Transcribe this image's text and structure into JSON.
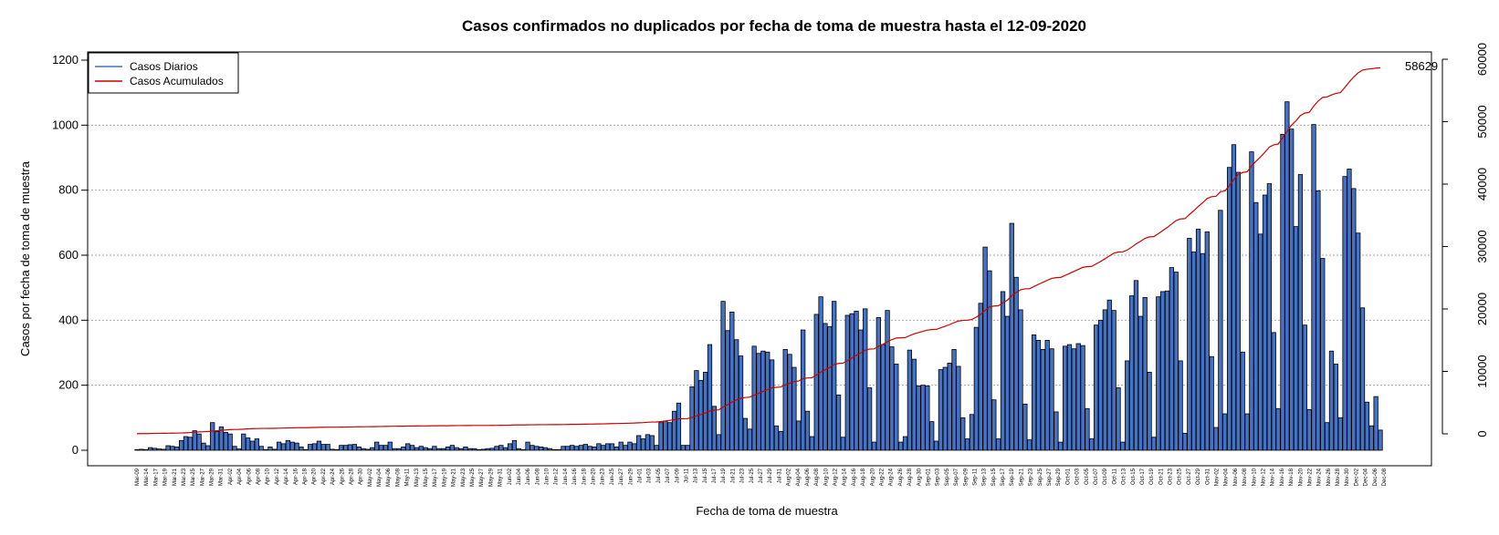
{
  "chart_data": {
    "type": "bar",
    "title": "Casos confirmados no duplicados por fecha de toma de muestra hasta el 12-09-2020",
    "xlabel": "Fecha de toma de muestra",
    "ylabel": "Casos por fecha de toma de muestra",
    "ylim": [
      0,
      1200
    ],
    "y_ticks": [
      "0",
      "200",
      "400",
      "600",
      "800",
      "1000",
      "1200"
    ],
    "y2lim": [
      -2000,
      62000
    ],
    "y2_ticks": [
      "0",
      "10000",
      "20000",
      "30000",
      "40000",
      "50000",
      "60000"
    ],
    "grid": "horizontal dotted",
    "legend_position": "top-left",
    "bar_color": "#4472C4",
    "line_color": "#CC0000",
    "series": [
      {
        "name": "Casos Diarios",
        "kind": "bar"
      },
      {
        "name": "Casos Acumulados",
        "kind": "line"
      }
    ],
    "final_label": "58629",
    "x_tick_labels": [
      "Mar-09",
      "Mar-14",
      "Mar-17",
      "Mar-19",
      "Mar-21",
      "Mar-23",
      "Mar-25",
      "Mar-27",
      "Mar-29",
      "Mar-31",
      "Apr-02",
      "Apr-04",
      "Apr-06",
      "Apr-08",
      "Apr-10",
      "Apr-12",
      "Apr-14",
      "Apr-16",
      "Apr-18",
      "Apr-20",
      "Apr-22",
      "Apr-24",
      "Apr-26",
      "Apr-28",
      "Apr-30",
      "May-02",
      "May-04",
      "May-06",
      "May-08",
      "May-11",
      "May-13",
      "May-15",
      "May-17",
      "May-19",
      "May-21",
      "May-23",
      "May-25",
      "May-27",
      "May-29",
      "May-31",
      "Jun-02",
      "Jun-04",
      "Jun-06",
      "Jun-08",
      "Jun-10",
      "Jun-12",
      "Jun-14",
      "Jun-16",
      "Jun-18",
      "Jun-20",
      "Jun-23",
      "Jun-25",
      "Jun-27",
      "Jun-29",
      "Jul-01",
      "Jul-03",
      "Jul-05",
      "Jul-07",
      "Jul-09",
      "Jul-11",
      "Jul-13",
      "Jul-15",
      "Jul-17",
      "Jul-19",
      "Jul-21",
      "Jul-23",
      "Jul-25",
      "Jul-27",
      "Jul-29",
      "Jul-31",
      "Aug-02",
      "Aug-04",
      "Aug-06",
      "Aug-08",
      "Aug-10",
      "Aug-12",
      "Aug-14",
      "Aug-16",
      "Aug-18",
      "Aug-20",
      "Aug-22",
      "Aug-24",
      "Aug-26",
      "Aug-28",
      "Aug-30",
      "Sep-01",
      "Sep-03",
      "Sep-05",
      "Sep-07",
      "Sep-09",
      "Sep-11",
      "Sep-13",
      "Sep-15",
      "Sep-17",
      "Sep-19",
      "Sep-21",
      "Sep-23",
      "Sep-25",
      "Sep-27",
      "Sep-29",
      "Oct-01",
      "Oct-03",
      "Oct-05",
      "Oct-07",
      "Oct-09",
      "Oct-11",
      "Oct-13",
      "Oct-15",
      "Oct-17",
      "Oct-19",
      "Oct-21",
      "Oct-23",
      "Oct-25",
      "Oct-27",
      "Oct-29",
      "Oct-31",
      "Nov-02",
      "Nov-04",
      "Nov-06",
      "Nov-08",
      "Nov-10",
      "Nov-12",
      "Nov-14",
      "Nov-16",
      "Nov-18",
      "Nov-20",
      "Nov-22",
      "Nov-24",
      "Nov-26",
      "Nov-28",
      "Nov-30",
      "Dec-02",
      "Dec-04",
      "Dec-06",
      "Dec-08"
    ],
    "values": [
      2,
      3,
      2,
      8,
      6,
      4,
      3,
      14,
      12,
      10,
      30,
      42,
      40,
      60,
      50,
      22,
      14,
      85,
      58,
      72,
      55,
      50,
      12,
      4,
      50,
      38,
      28,
      35,
      12,
      2,
      10,
      3,
      25,
      20,
      30,
      25,
      22,
      10,
      2,
      18,
      20,
      28,
      18,
      18,
      3,
      2,
      15,
      15,
      17,
      18,
      10,
      5,
      3,
      8,
      25,
      15,
      15,
      25,
      5,
      5,
      10,
      20,
      15,
      8,
      12,
      8,
      5,
      12,
      5,
      5,
      10,
      15,
      8,
      5,
      10,
      5,
      5,
      2,
      3,
      5,
      6,
      12,
      15,
      8,
      20,
      30,
      5,
      2,
      25,
      15,
      12,
      10,
      8,
      5,
      2,
      2,
      12,
      12,
      15,
      12,
      15,
      18,
      12,
      10,
      20,
      15,
      20,
      20,
      10,
      25,
      15,
      25,
      20,
      45,
      35,
      48,
      45,
      15,
      85,
      90,
      85,
      120,
      145,
      15,
      15,
      195,
      245,
      215,
      240,
      325,
      135,
      48,
      458,
      368,
      425,
      340,
      290,
      98,
      65,
      320,
      298,
      305,
      302,
      278,
      75,
      58,
      310,
      295,
      255,
      90,
      370,
      120,
      42,
      418,
      472,
      390,
      380,
      458,
      170,
      40,
      415,
      420,
      428,
      370,
      435,
      192,
      25,
      408,
      325,
      430,
      318,
      265,
      25,
      42,
      308,
      280,
      198,
      200,
      198,
      88,
      28,
      248,
      255,
      268,
      310,
      258,
      100,
      35,
      110,
      378,
      452,
      625,
      552,
      155,
      35,
      488,
      412,
      698,
      532,
      432,
      142,
      32,
      355,
      338,
      310,
      338,
      312,
      118,
      25,
      320,
      325,
      312,
      328,
      322,
      128,
      35,
      385,
      400,
      432,
      462,
      430,
      192,
      25,
      275,
      475,
      522,
      412,
      470,
      240,
      40,
      472,
      488,
      490,
      562,
      548,
      275,
      52,
      652,
      610,
      680,
      605,
      672,
      288,
      70,
      738,
      112,
      870,
      940,
      855,
      302,
      112,
      918,
      762,
      665,
      785,
      820,
      362,
      128,
      972,
      1072,
      988,
      688,
      848,
      385,
      125,
      1002,
      798,
      590,
      85,
      305,
      265,
      100,
      842,
      865,
      805,
      668,
      438,
      148,
      75,
      165,
      62
    ],
    "cumulative": [
      20,
      32,
      40,
      53,
      70,
      80,
      90,
      100,
      110,
      120,
      140,
      170,
      210,
      260,
      310,
      340,
      370,
      440,
      500,
      560,
      620,
      670,
      700,
      710,
      750,
      800,
      820,
      850,
      870,
      870,
      880,
      880,
      900,
      920,
      950,
      960,
      980,
      990,
      990,
      1000,
      1020,
      1040,
      1060,
      1070,
      1070,
      1070,
      1080,
      1090,
      1100,
      1120,
      1130,
      1140,
      1140,
      1150,
      1170,
      1180,
      1190,
      1210,
      1210,
      1220,
      1220,
      1240,
      1250,
      1260,
      1270,
      1270,
      1280,
      1290,
      1290,
      1290,
      1300,
      1310,
      1320,
      1320,
      1330,
      1330,
      1340,
      1340,
      1340,
      1340,
      1350,
      1360,
      1370,
      1380,
      1390,
      1420,
      1420,
      1420,
      1440,
      1450,
      1460,
      1470,
      1470,
      1480,
      1480,
      1480,
      1490,
      1500,
      1510,
      1520,
      1530,
      1550,
      1560,
      1570,
      1590,
      1600,
      1620,
      1640,
      1650,
      1670,
      1690,
      1710,
      1730,
      1770,
      1800,
      1850,
      1890,
      1900,
      1970,
      2060,
      2150,
      2270,
      2410,
      2420,
      2440,
      2640,
      2880,
      3090,
      3330,
      3650,
      3790,
      3840,
      4290,
      4660,
      5080,
      5420,
      5710,
      5810,
      5880,
      6200,
      6500,
      6800,
      7100,
      7380,
      7450,
      7510,
      7820,
      8110,
      8370,
      8460,
      8830,
      8950,
      8990,
      9410,
      9880,
      10270,
      10650,
      11110,
      11280,
      11320,
      11730,
      12150,
      12580,
      12950,
      13390,
      13580,
      13600,
      14010,
      14340,
      14770,
      15090,
      15350,
      15380,
      15420,
      15730,
      16010,
      16210,
      16410,
      16610,
      16700,
      16730,
      16980,
      17230,
      17500,
      17810,
      18070,
      18170,
      18200,
      18310,
      18690,
      19150,
      19770,
      20320,
      20470,
      20510,
      21000,
      21410,
      22110,
      22640,
      23070,
      23220,
      23250,
      23600,
      23940,
      24250,
      24590,
      24900,
      25020,
      25050,
      25370,
      25690,
      26010,
      26340,
      26660,
      26790,
      26820,
      27210,
      27610,
      28040,
      28500,
      28930,
      29120,
      29150,
      29430,
      29900,
      30420,
      30840,
      31310,
      31550,
      31590,
      32060,
      32550,
      33040,
      33600,
      34150,
      34420,
      34470,
      35130,
      35740,
      36420,
      37020,
      37690,
      37980,
      38050,
      38790,
      38900,
      39770,
      40710,
      41560,
      41860,
      41980,
      42900,
      43660,
      44330,
      45110,
      45930,
      46290,
      46420,
      47390,
      48460,
      49450,
      50140,
      50990,
      51370,
      51500,
      52500,
      53300,
      53890,
      53970,
      54280,
      54540,
      54640,
      55480,
      56350,
      57150,
      57820,
      58260,
      58400,
      58480,
      58580,
      58629
    ]
  }
}
